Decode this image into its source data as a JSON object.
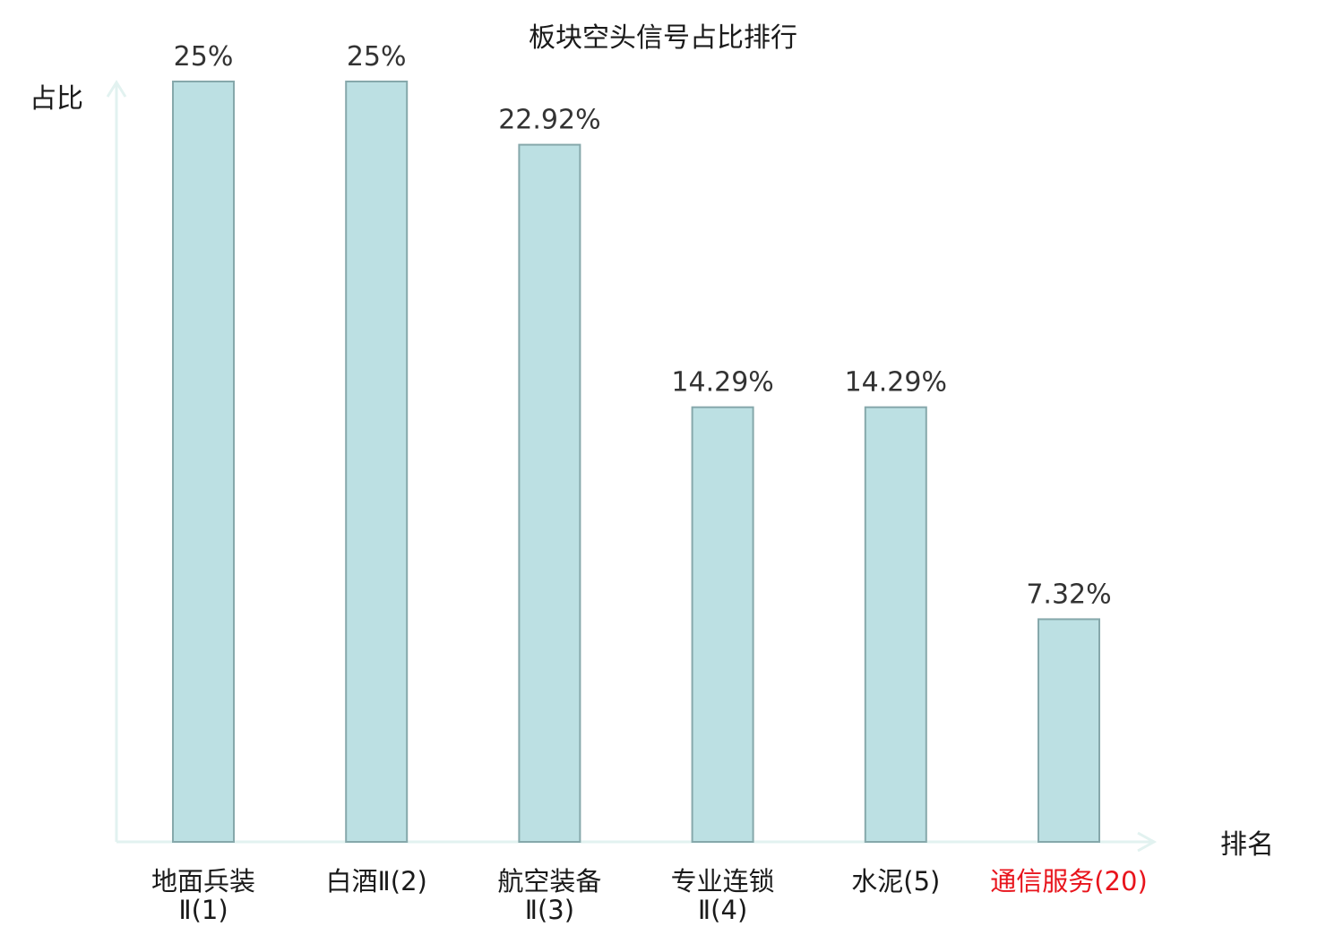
{
  "chart_data": {
    "type": "bar",
    "title": "板块空头信号占比排行",
    "ylabel": "占比",
    "xlabel": "排名",
    "ylim": [
      0,
      25
    ],
    "grid": false,
    "categories": [
      [
        "地面兵装",
        "Ⅱ(1)"
      ],
      [
        "白酒Ⅱ(2)"
      ],
      [
        "航空装备",
        "Ⅱ(3)"
      ],
      [
        "专业连锁",
        "Ⅱ(4)"
      ],
      [
        "水泥(5)"
      ],
      [
        "通信服务(20)"
      ]
    ],
    "values": [
      25,
      25,
      22.92,
      14.29,
      14.29,
      7.32
    ],
    "value_labels": [
      "25%",
      "25%",
      "22.92%",
      "14.29%",
      "14.29%",
      "7.32%"
    ],
    "highlighted_index": 5
  },
  "colors": {
    "bar_fill": "#bce0e3",
    "bar_stroke": "#86a8ab",
    "axis": "#e2f2f0",
    "text": "#1a1a1a",
    "value_text": "#333333",
    "highlight_text": "#e8141c"
  }
}
